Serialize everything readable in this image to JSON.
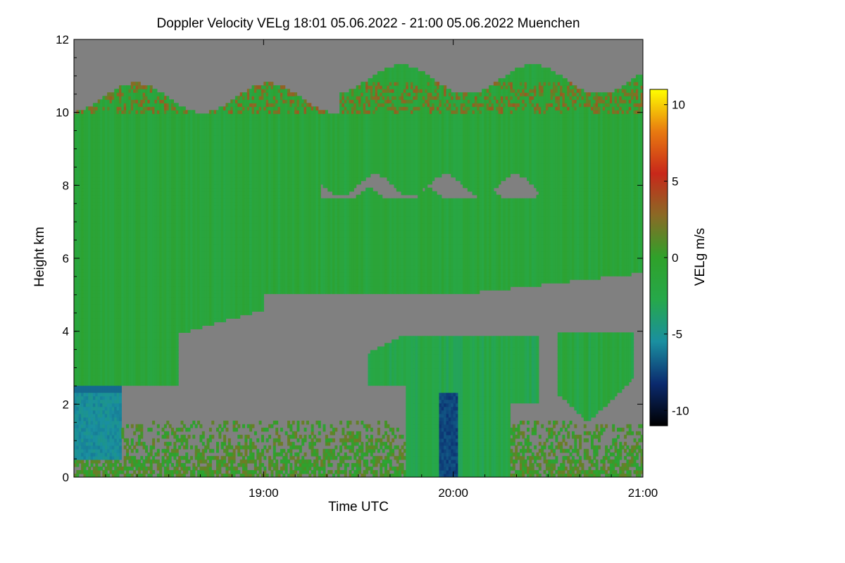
{
  "chart_data": {
    "type": "heatmap",
    "title": "Doppler Velocity VELg   18:01 05.06.2022 - 21:00 05.06.2022 Muenchen",
    "xlabel": "Time UTC",
    "ylabel": "Height km",
    "colorbar_label": "VELg m/s",
    "x_range_hours": [
      18.0,
      21.0
    ],
    "x_ticks": [
      {
        "value": 19.0,
        "label": "19:00"
      },
      {
        "value": 20.0,
        "label": "20:00"
      },
      {
        "value": 21.0,
        "label": "21:00"
      }
    ],
    "y_range_km": [
      0,
      12
    ],
    "y_ticks": [
      {
        "value": 0,
        "label": "0"
      },
      {
        "value": 2,
        "label": "2"
      },
      {
        "value": 4,
        "label": "4"
      },
      {
        "value": 6,
        "label": "6"
      },
      {
        "value": 8,
        "label": "8"
      },
      {
        "value": 10,
        "label": "10"
      },
      {
        "value": 12,
        "label": "12"
      }
    ],
    "color_range_ms": [
      -11,
      11
    ],
    "colorbar_ticks": [
      {
        "value": 10,
        "label": "10"
      },
      {
        "value": 5,
        "label": "5"
      },
      {
        "value": 0,
        "label": "0"
      },
      {
        "value": -5,
        "label": "-5"
      },
      {
        "value": -10,
        "label": "-10"
      }
    ],
    "colormap": [
      "#000000",
      "#0b2a6e",
      "#1a8fa0",
      "#26a84a",
      "#2fa12a",
      "#8a6a25",
      "#c8281a",
      "#e87a10",
      "#ffff00"
    ],
    "no_data_color": "#808080",
    "regions": [
      {
        "name": "upper cirrus layer",
        "time_start": 18.0,
        "time_end": 21.0,
        "base_km": 5.5,
        "top_km": 10.8,
        "velocity_ms": -1.5
      },
      {
        "name": "deep early layer",
        "time_start": 18.0,
        "time_end": 18.55,
        "base_km": 2.5,
        "top_km": 11.0,
        "velocity_ms": -2.5
      },
      {
        "name": "melting layer",
        "time_start": 18.0,
        "time_end": 18.25,
        "base_km": 2.3,
        "top_km": 2.5,
        "velocity_ms": -6.5
      },
      {
        "name": "rain shaft",
        "time_start": 18.0,
        "time_end": 18.25,
        "base_km": 0.5,
        "top_km": 2.3,
        "velocity_ms": -6.0
      },
      {
        "name": "mid-level cloud",
        "time_start": 19.55,
        "time_end": 20.45,
        "base_km": 0.0,
        "top_km": 3.9,
        "velocity_ms": -2.5
      },
      {
        "name": "fall streak",
        "time_start": 19.93,
        "time_end": 20.02,
        "base_km": 0.0,
        "top_km": 2.3,
        "velocity_ms": -8.0
      },
      {
        "name": "convective cell",
        "time_start": 20.55,
        "time_end": 20.95,
        "base_km": 1.5,
        "top_km": 4.1,
        "velocity_ms": -2.0
      },
      {
        "name": "boundary layer",
        "time_start": 18.0,
        "time_end": 21.0,
        "base_km": 0.0,
        "top_km": 1.5,
        "velocity_ms": 0.5
      },
      {
        "name": "cloud top updrafts",
        "time_start": 18.0,
        "time_end": 21.0,
        "base_km": 10.0,
        "top_km": 10.8,
        "velocity_ms": 1.5
      },
      {
        "name": "clear slot",
        "time_start": 19.3,
        "time_end": 20.5,
        "base_km": 7.6,
        "top_km": 8.3,
        "velocity_ms": null
      }
    ]
  }
}
